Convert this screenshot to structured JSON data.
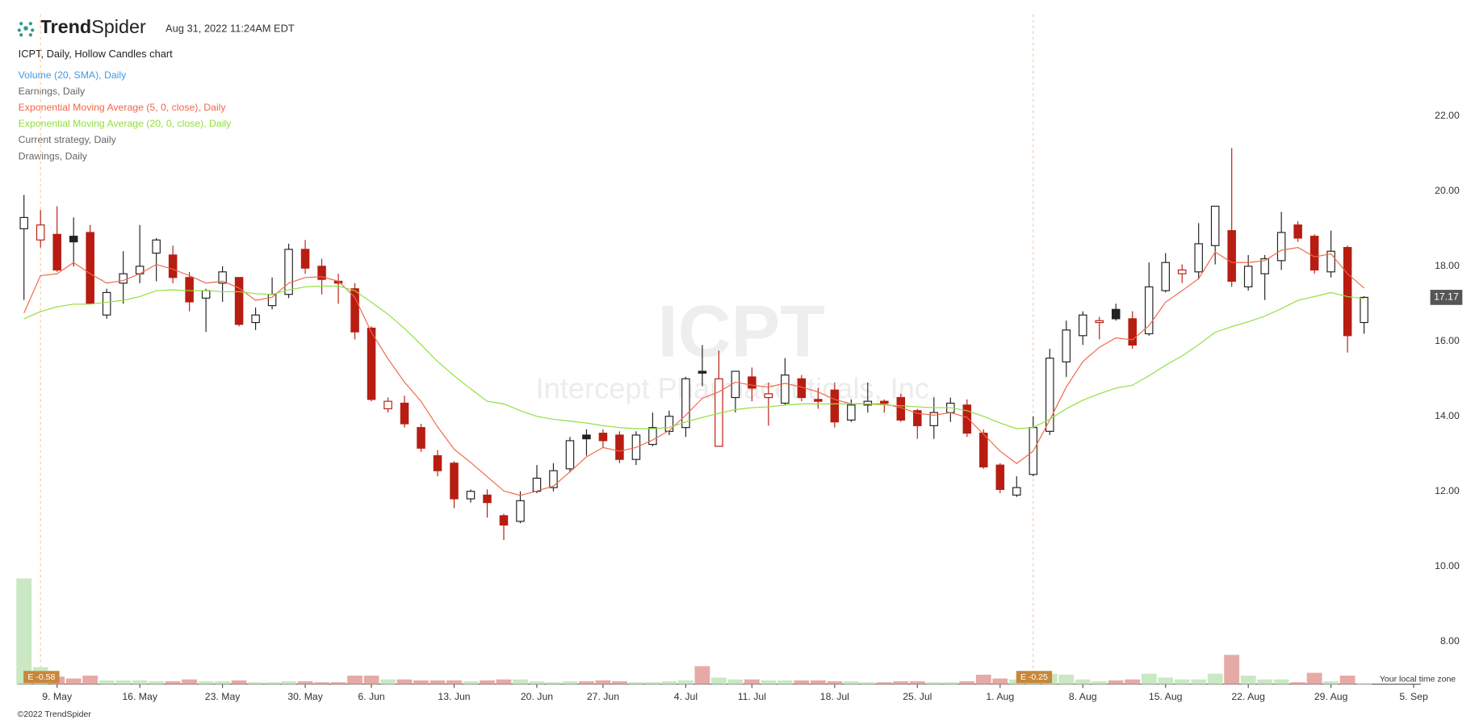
{
  "header": {
    "brand": [
      "Trend",
      "Spider"
    ],
    "timestamp": "Aug 31, 2022 11:24AM EDT",
    "chart_label": "ICPT, Daily, Hollow Candles chart",
    "indicators": [
      {
        "label": "Volume (20, SMA), Daily",
        "color": "#3d9be9"
      },
      {
        "label": "Earnings, Daily",
        "color": "#666666"
      },
      {
        "label": "Exponential Moving Average (5, 0, close), Daily",
        "color": "#f2664a"
      },
      {
        "label": "Exponential Moving Average (20, 0, close), Daily",
        "color": "#8ee03c"
      },
      {
        "label": "Current strategy, Daily",
        "color": "#666666"
      },
      {
        "label": "Drawings, Daily",
        "color": "#666666"
      }
    ]
  },
  "watermark": {
    "symbol": "ICPT",
    "company": "Intercept Pharmaceuticals, Inc."
  },
  "footer": {
    "timezone": "Your local time zone",
    "copyright": "©2022 TrendSpider"
  },
  "chart_data": {
    "type": "candlestick",
    "up_color": "#222222",
    "down_color": "#b81d12",
    "xlim": [
      -0.4,
      84.43
    ],
    "xticks": [
      {
        "value": 2,
        "label": "9. May"
      },
      {
        "value": 7,
        "label": "16. May"
      },
      {
        "value": 12,
        "label": "23. May"
      },
      {
        "value": 17,
        "label": "30. May"
      },
      {
        "value": 21,
        "label": "6. Jun"
      },
      {
        "value": 26,
        "label": "13. Jun"
      },
      {
        "value": 31,
        "label": "20. Jun"
      },
      {
        "value": 35,
        "label": "27. Jun"
      },
      {
        "value": 40,
        "label": "4. Jul"
      },
      {
        "value": 44,
        "label": "11. Jul"
      },
      {
        "value": 49,
        "label": "18. Jul"
      },
      {
        "value": 54,
        "label": "25. Jul"
      },
      {
        "value": 59,
        "label": "1. Aug"
      },
      {
        "value": 64,
        "label": "8. Aug"
      },
      {
        "value": 69,
        "label": "15. Aug"
      },
      {
        "value": 74,
        "label": "22. Aug"
      },
      {
        "value": 79,
        "label": "29. Aug"
      },
      {
        "value": 84,
        "label": "5. Sep"
      }
    ],
    "ylim": [
      6.86,
      24.72
    ],
    "yticks": [
      {
        "value": 8,
        "label": "8.00"
      },
      {
        "value": 10,
        "label": "10.00"
      },
      {
        "value": 12,
        "label": "12.00"
      },
      {
        "value": 14,
        "label": "14.00"
      },
      {
        "value": 16,
        "label": "16.00"
      },
      {
        "value": 18,
        "label": "18.00"
      },
      {
        "value": 20,
        "label": "20.00"
      },
      {
        "value": 22,
        "label": "22.00"
      }
    ],
    "open": [
      19.0,
      18.7,
      18.85,
      18.8,
      18.9,
      16.7,
      17.55,
      17.8,
      18.35,
      18.3,
      17.7,
      17.15,
      17.55,
      17.7,
      16.5,
      16.95,
      17.25,
      18.45,
      18.0,
      17.6,
      17.4,
      16.35,
      14.2,
      14.35,
      13.7,
      12.95,
      12.75,
      11.8,
      11.9,
      11.35,
      11.2,
      12.0,
      12.1,
      12.6,
      13.5,
      13.55,
      13.5,
      12.85,
      13.25,
      13.6,
      13.7,
      15.2,
      13.2,
      14.5,
      15.05,
      14.5,
      14.35,
      15.0,
      14.45,
      14.7,
      13.9,
      14.3,
      14.4,
      14.5,
      14.15,
      13.75,
      14.1,
      14.3,
      13.55,
      12.7,
      11.9,
      12.45,
      13.6,
      15.45,
      16.15,
      16.5,
      16.85,
      16.6,
      16.2,
      17.35,
      17.8,
      17.85,
      18.55,
      18.95,
      17.45,
      17.8,
      18.15,
      19.1,
      18.8,
      17.85,
      18.5,
      16.5
    ],
    "high": [
      19.9,
      19.5,
      19.6,
      19.3,
      19.1,
      17.4,
      18.4,
      19.1,
      18.75,
      18.55,
      17.85,
      17.4,
      18.0,
      17.7,
      16.9,
      17.7,
      18.6,
      18.7,
      18.2,
      17.8,
      17.55,
      16.4,
      14.5,
      14.55,
      13.8,
      13.1,
      12.8,
      12.05,
      12.05,
      11.4,
      12.0,
      12.7,
      12.75,
      13.45,
      13.65,
      13.65,
      13.6,
      13.6,
      14.1,
      14.15,
      15.05,
      15.9,
      15.75,
      15.2,
      15.3,
      14.9,
      15.55,
      15.1,
      14.75,
      14.9,
      14.45,
      14.9,
      14.45,
      14.6,
      14.2,
      14.5,
      14.5,
      14.45,
      13.65,
      12.75,
      12.4,
      14.0,
      15.8,
      16.55,
      16.8,
      16.65,
      17.0,
      16.8,
      18.1,
      18.35,
      18.05,
      19.15,
      19.6,
      21.15,
      18.3,
      18.3,
      19.45,
      19.2,
      18.85,
      18.95,
      18.55,
      17.2
    ],
    "low": [
      17.1,
      18.5,
      17.85,
      18.0,
      17.0,
      16.6,
      17.0,
      17.55,
      17.6,
      17.55,
      16.8,
      16.25,
      17.05,
      16.4,
      16.3,
      16.85,
      17.15,
      17.8,
      17.25,
      17.0,
      16.05,
      14.4,
      14.1,
      13.7,
      13.05,
      12.4,
      11.55,
      11.7,
      11.3,
      10.7,
      11.15,
      11.95,
      12.0,
      12.5,
      12.95,
      13.15,
      12.75,
      12.7,
      13.2,
      13.5,
      13.45,
      14.8,
      13.2,
      14.1,
      14.4,
      13.75,
      14.3,
      14.4,
      14.2,
      13.7,
      13.85,
      14.1,
      14.1,
      13.85,
      13.4,
      13.4,
      13.85,
      13.45,
      12.6,
      11.95,
      11.85,
      12.4,
      13.5,
      15.05,
      15.9,
      16.05,
      16.55,
      15.8,
      16.15,
      17.3,
      17.55,
      17.65,
      18.05,
      17.45,
      17.35,
      17.1,
      17.9,
      18.65,
      17.8,
      17.7,
      15.7,
      16.2
    ],
    "close": [
      19.3,
      19.1,
      17.9,
      18.65,
      17.0,
      17.3,
      17.8,
      18.0,
      18.7,
      17.7,
      17.05,
      17.35,
      17.85,
      16.45,
      16.7,
      17.25,
      18.45,
      17.95,
      17.65,
      17.55,
      16.25,
      14.45,
      14.4,
      13.8,
      13.15,
      12.55,
      11.8,
      12.0,
      11.7,
      11.1,
      11.75,
      12.35,
      12.55,
      13.35,
      13.4,
      13.35,
      12.85,
      13.5,
      13.7,
      14.0,
      15.0,
      15.15,
      15.0,
      15.2,
      14.75,
      14.6,
      15.1,
      14.5,
      14.4,
      13.85,
      14.3,
      14.4,
      14.35,
      13.9,
      13.75,
      14.1,
      14.35,
      13.55,
      12.65,
      12.05,
      12.1,
      13.7,
      15.55,
      16.3,
      16.7,
      16.55,
      16.6,
      15.9,
      17.45,
      18.1,
      17.9,
      18.6,
      19.6,
      17.6,
      18.0,
      18.2,
      18.9,
      18.75,
      17.9,
      18.4,
      16.15,
      17.17
    ],
    "lines": [
      {
        "color": "#f2664a",
        "values": [
          16.75,
          17.75,
          17.8,
          18.1,
          17.8,
          17.55,
          17.62,
          17.8,
          18.05,
          17.92,
          17.75,
          17.55,
          17.6,
          17.42,
          17.09,
          17.17,
          17.55,
          17.7,
          17.72,
          17.6,
          17.17,
          16.24,
          15.53,
          14.91,
          14.4,
          13.72,
          13.12,
          12.77,
          12.39,
          12.01,
          11.89,
          12.01,
          12.14,
          12.52,
          12.92,
          13.17,
          13.07,
          13.17,
          13.37,
          13.62,
          14.03,
          14.48,
          14.65,
          14.91,
          14.83,
          14.78,
          14.88,
          14.78,
          14.65,
          14.45,
          14.33,
          14.33,
          14.33,
          14.23,
          14.08,
          14.03,
          14.1,
          13.97,
          13.52,
          13.07,
          12.74,
          13.07,
          13.9,
          14.78,
          15.46,
          15.84,
          16.09,
          16.04,
          16.42,
          17.04,
          17.35,
          17.67,
          18.38,
          18.1,
          18.1,
          18.15,
          18.43,
          18.5,
          18.25,
          18.33,
          17.8,
          17.42
        ]
      },
      {
        "color": "#8ee03c",
        "values": [
          16.6,
          16.79,
          16.92,
          16.99,
          16.99,
          17.04,
          17.09,
          17.19,
          17.35,
          17.37,
          17.35,
          17.35,
          17.32,
          17.32,
          17.27,
          17.25,
          17.37,
          17.45,
          17.47,
          17.47,
          17.35,
          17.04,
          16.72,
          16.34,
          15.91,
          15.46,
          15.08,
          14.73,
          14.4,
          14.33,
          14.15,
          14.0,
          13.92,
          13.87,
          13.82,
          13.75,
          13.7,
          13.67,
          13.67,
          13.7,
          13.85,
          13.97,
          14.08,
          14.18,
          14.23,
          14.25,
          14.3,
          14.33,
          14.33,
          14.33,
          14.33,
          14.33,
          14.3,
          14.28,
          14.25,
          14.23,
          14.23,
          14.15,
          14.0,
          13.82,
          13.67,
          13.7,
          13.92,
          14.2,
          14.43,
          14.6,
          14.75,
          14.83,
          15.08,
          15.36,
          15.61,
          15.91,
          16.24,
          16.39,
          16.52,
          16.67,
          16.87,
          17.09,
          17.19,
          17.3,
          17.19,
          17.14
        ]
      }
    ],
    "volume": [
      5.6,
      0.9,
      0.4,
      0.3,
      0.45,
      0.2,
      0.2,
      0.2,
      0.15,
      0.15,
      0.25,
      0.15,
      0.15,
      0.2,
      0.1,
      0.1,
      0.15,
      0.15,
      0.1,
      0.1,
      0.45,
      0.45,
      0.25,
      0.25,
      0.2,
      0.2,
      0.2,
      0.15,
      0.2,
      0.25,
      0.25,
      0.15,
      0.1,
      0.15,
      0.15,
      0.2,
      0.15,
      0.1,
      0.1,
      0.15,
      0.2,
      0.95,
      0.35,
      0.25,
      0.25,
      0.2,
      0.2,
      0.2,
      0.2,
      0.15,
      0.15,
      0.1,
      0.1,
      0.15,
      0.15,
      0.1,
      0.1,
      0.15,
      0.5,
      0.3,
      0.25,
      0.6,
      0.55,
      0.5,
      0.25,
      0.15,
      0.2,
      0.25,
      0.55,
      0.35,
      0.25,
      0.25,
      0.55,
      1.55,
      0.45,
      0.25,
      0.25,
      0.1,
      0.6,
      0.15,
      0.45,
      0.05
    ],
    "volume_up_color": "#c9e8c3",
    "volume_down_color": "#e6aaa6",
    "earnings": [
      {
        "at": 1,
        "label": "E -0.58"
      },
      {
        "at": 61,
        "label": "E -0.25"
      }
    ],
    "earnings_color": "#c8873a",
    "last_price": 17.17
  }
}
